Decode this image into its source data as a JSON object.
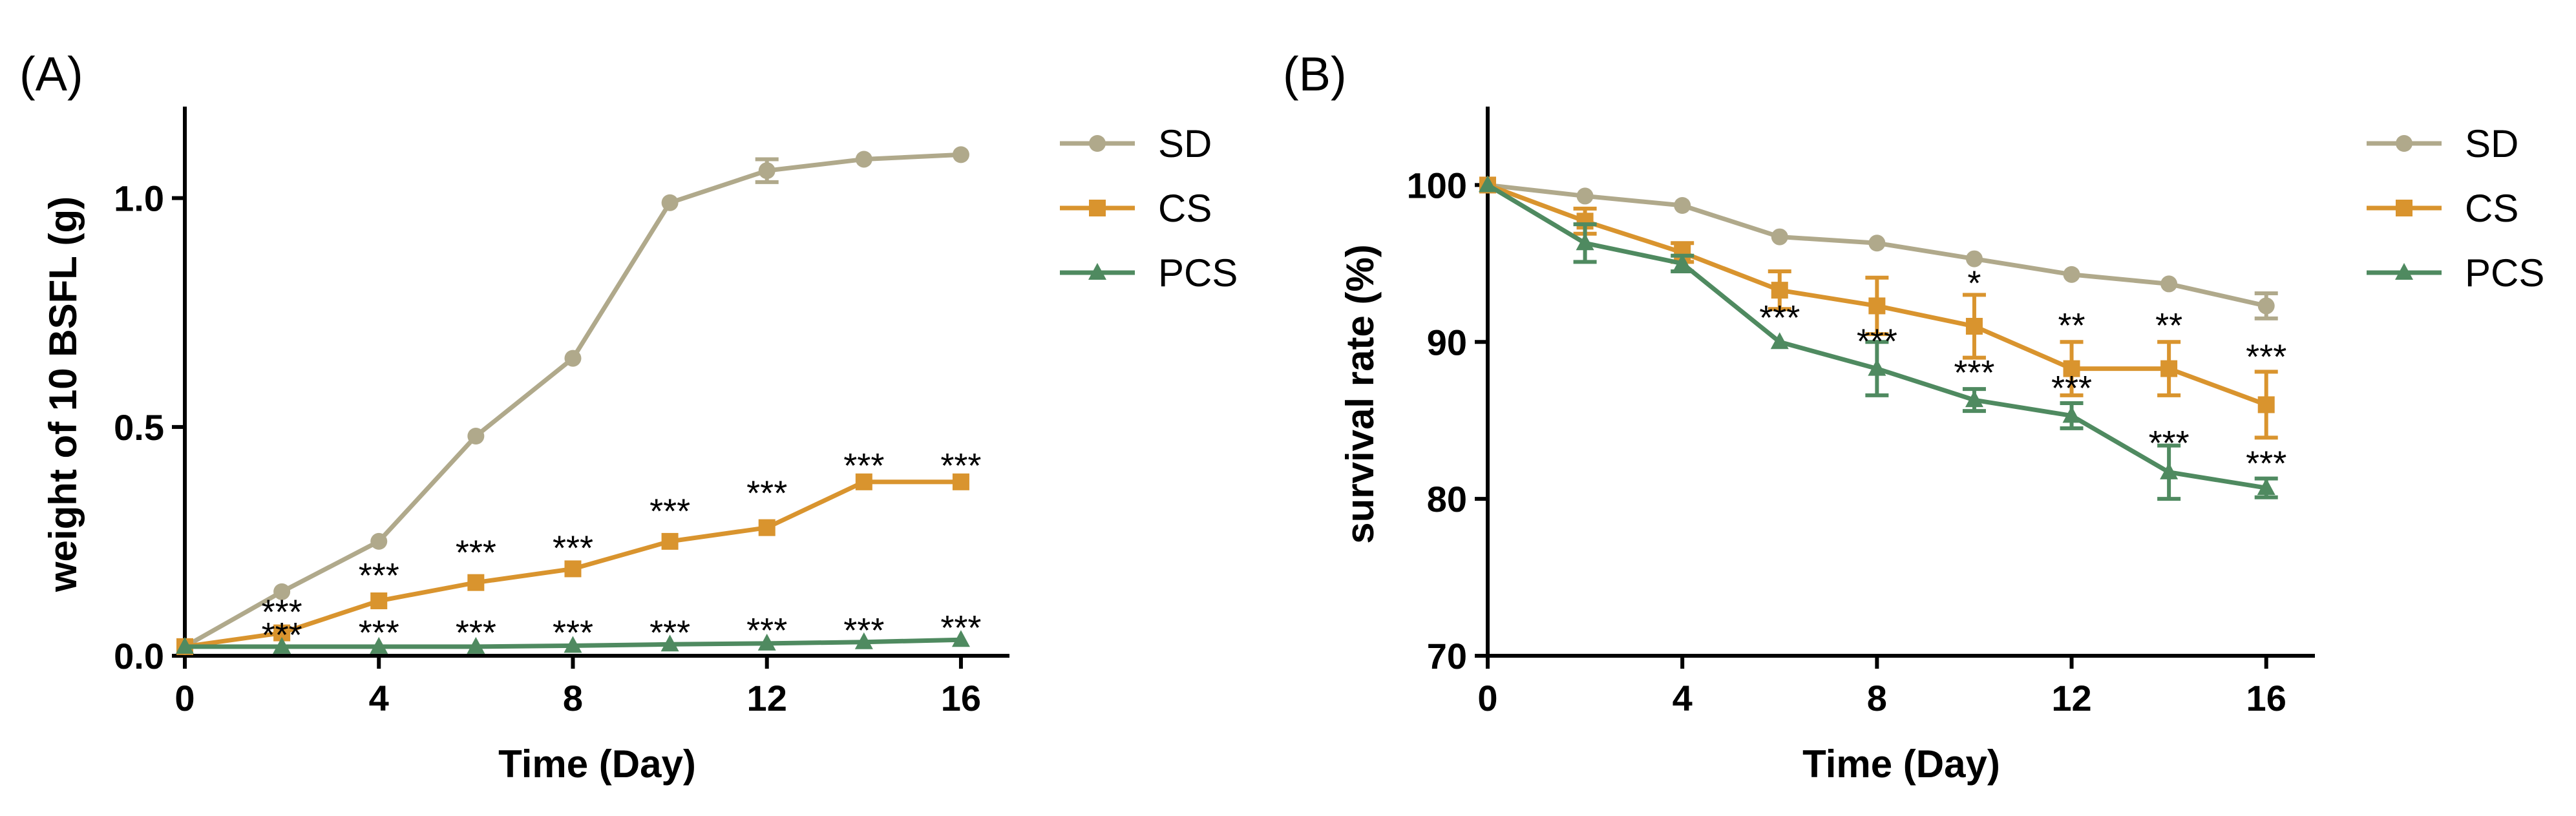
{
  "colors": {
    "SD": "#b0a98b",
    "CS": "#d9942e",
    "PCS": "#4f8a60"
  },
  "chart_data": [
    {
      "type": "line",
      "panel_label": "(A)",
      "xlabel": "Time (Day)",
      "ylabel": "weight of 10 BSFL (g)",
      "xlim": [
        0,
        17
      ],
      "ylim": [
        0,
        1.2
      ],
      "xticks": [
        "0",
        "4",
        "8",
        "12",
        "16"
      ],
      "yticks": [
        "0.0",
        "0.5",
        "1.0"
      ],
      "legend": [
        "SD",
        "CS",
        "PCS"
      ],
      "legend_position": "right",
      "series": [
        {
          "name": "SD",
          "marker": "circle",
          "x": [
            0,
            2,
            4,
            6,
            8,
            10,
            12,
            14,
            16
          ],
          "y": [
            0.02,
            0.14,
            0.25,
            0.48,
            0.65,
            0.99,
            1.06,
            1.085,
            1.095
          ],
          "err": [
            0,
            0,
            0,
            0,
            0,
            0,
            0.025,
            0,
            0
          ]
        },
        {
          "name": "CS",
          "marker": "square",
          "x": [
            0,
            2,
            4,
            6,
            8,
            10,
            12,
            14,
            16
          ],
          "y": [
            0.02,
            0.05,
            0.12,
            0.16,
            0.19,
            0.25,
            0.28,
            0.38,
            0.38
          ],
          "err": [
            0,
            0,
            0,
            0,
            0,
            0,
            0,
            0,
            0
          ]
        },
        {
          "name": "PCS",
          "marker": "triangle",
          "x": [
            0,
            2,
            4,
            6,
            8,
            10,
            12,
            14,
            16
          ],
          "y": [
            0.02,
            0.02,
            0.02,
            0.02,
            0.022,
            0.025,
            0.027,
            0.03,
            0.035
          ],
          "err": [
            0,
            0,
            0,
            0,
            0,
            0,
            0,
            0,
            0
          ]
        }
      ],
      "annotations": [
        {
          "x": 2,
          "y": 0.07,
          "text": "***"
        },
        {
          "x": 4,
          "y": 0.15,
          "text": "***"
        },
        {
          "x": 6,
          "y": 0.2,
          "text": "***"
        },
        {
          "x": 8,
          "y": 0.21,
          "text": "***"
        },
        {
          "x": 10,
          "y": 0.29,
          "text": "***"
        },
        {
          "x": 12,
          "y": 0.33,
          "text": "***"
        },
        {
          "x": 14,
          "y": 0.39,
          "text": "***"
        },
        {
          "x": 16,
          "y": 0.39,
          "text": "***"
        },
        {
          "x": 2,
          "y": 0.02,
          "text": "***"
        },
        {
          "x": 4,
          "y": 0.025,
          "text": "***"
        },
        {
          "x": 6,
          "y": 0.025,
          "text": "***"
        },
        {
          "x": 8,
          "y": 0.025,
          "text": "***"
        },
        {
          "x": 10,
          "y": 0.025,
          "text": "***"
        },
        {
          "x": 12,
          "y": 0.03,
          "text": "***"
        },
        {
          "x": 14,
          "y": 0.03,
          "text": "***"
        },
        {
          "x": 16,
          "y": 0.035,
          "text": "***"
        }
      ]
    },
    {
      "type": "line",
      "panel_label": "(B)",
      "xlabel": "Time (Day)",
      "ylabel": "survival rate (%)",
      "xlim": [
        0,
        17
      ],
      "ylim": [
        70,
        105
      ],
      "xticks": [
        "0",
        "4",
        "8",
        "12",
        "16"
      ],
      "yticks": [
        "70",
        "80",
        "90",
        "100"
      ],
      "legend": [
        "SD",
        "CS",
        "PCS"
      ],
      "legend_position": "right",
      "series": [
        {
          "name": "SD",
          "marker": "circle",
          "x": [
            0,
            2,
            4,
            6,
            8,
            10,
            12,
            14,
            16
          ],
          "y": [
            100,
            99.3,
            98.7,
            96.7,
            96.3,
            95.3,
            94.3,
            93.7,
            92.3
          ],
          "err": [
            0,
            0,
            0,
            0,
            0,
            0,
            0,
            0,
            0.8
          ]
        },
        {
          "name": "CS",
          "marker": "square",
          "x": [
            0,
            2,
            4,
            6,
            8,
            10,
            12,
            14,
            16
          ],
          "y": [
            100,
            97.7,
            95.7,
            93.3,
            92.3,
            91.0,
            88.3,
            88.3,
            86.0
          ],
          "err": [
            0,
            0.8,
            0.6,
            1.2,
            1.8,
            2.0,
            1.7,
            1.7,
            2.1
          ]
        },
        {
          "name": "PCS",
          "marker": "triangle",
          "x": [
            0,
            2,
            4,
            6,
            8,
            10,
            12,
            14,
            16
          ],
          "y": [
            100,
            96.3,
            95.0,
            90.0,
            88.3,
            86.3,
            85.3,
            81.7,
            80.7
          ],
          "err": [
            0,
            1.2,
            0.5,
            0,
            1.7,
            0.7,
            0.8,
            1.7,
            0.6
          ]
        }
      ],
      "annotations": [
        {
          "x": 10,
          "y": 93.0,
          "text": "*"
        },
        {
          "x": 12,
          "y": 90.3,
          "text": "**"
        },
        {
          "x": 14,
          "y": 90.3,
          "text": "**"
        },
        {
          "x": 16,
          "y": 88.3,
          "text": "***"
        },
        {
          "x": 6,
          "y": 90.8,
          "text": "***"
        },
        {
          "x": 8,
          "y": 89.3,
          "text": "***"
        },
        {
          "x": 10,
          "y": 87.3,
          "text": "***"
        },
        {
          "x": 12,
          "y": 86.3,
          "text": "***"
        },
        {
          "x": 14,
          "y": 82.8,
          "text": "***"
        },
        {
          "x": 16,
          "y": 81.5,
          "text": "***"
        }
      ]
    }
  ]
}
